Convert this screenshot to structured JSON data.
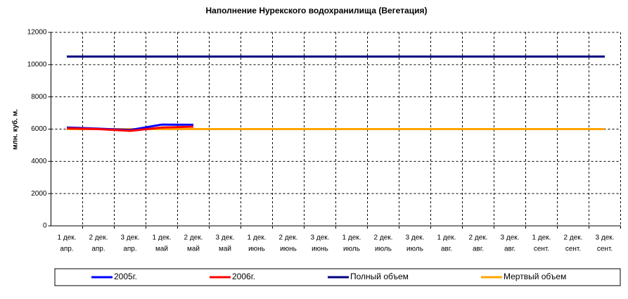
{
  "chart_data": {
    "type": "line",
    "title": "Наполнение Нурекского водохранилища (Вегетация)",
    "y_label": "млн. куб. м.",
    "categories": [
      [
        "1 дек.",
        "апр."
      ],
      [
        "2 дек.",
        "апр."
      ],
      [
        "3 дек.",
        "апр."
      ],
      [
        "1 дек.",
        "май"
      ],
      [
        "2 дек.",
        "май"
      ],
      [
        "3 дек.",
        "май"
      ],
      [
        "1 дек.",
        "июнь"
      ],
      [
        "2 дек.",
        "июнь"
      ],
      [
        "3 дек.",
        "июнь"
      ],
      [
        "1 дек.",
        "июль"
      ],
      [
        "2 дек.",
        "июль"
      ],
      [
        "3 дек.",
        "июль"
      ],
      [
        "1 дек.",
        "авг."
      ],
      [
        "2 дек.",
        "авг."
      ],
      [
        "3 дек.",
        "авг."
      ],
      [
        "1 дек.",
        "сент."
      ],
      [
        "2 дек.",
        "сент."
      ],
      [
        "3 дек.",
        "сент."
      ]
    ],
    "series": [
      {
        "name": "2005г.",
        "color": "#0000ff",
        "values": [
          6100,
          6030,
          5940,
          6280,
          6270,
          null,
          null,
          null,
          null,
          null,
          null,
          null,
          null,
          null,
          null,
          null,
          null,
          null
        ]
      },
      {
        "name": "2006г.",
        "color": "#ff0000",
        "values": [
          6050,
          6000,
          5890,
          6100,
          6150,
          null,
          null,
          null,
          null,
          null,
          null,
          null,
          null,
          null,
          null,
          null,
          null,
          null
        ]
      },
      {
        "name": "Полный объем",
        "color": "#000080",
        "values": [
          10500,
          10500,
          10500,
          10500,
          10500,
          10500,
          10500,
          10500,
          10500,
          10500,
          10500,
          10500,
          10500,
          10500,
          10500,
          10500,
          10500,
          10500
        ]
      },
      {
        "name": "Мертвый объем",
        "color": "#ffa500",
        "values": [
          6000,
          6000,
          6000,
          6000,
          6000,
          6000,
          6000,
          6000,
          6000,
          6000,
          6000,
          6000,
          6000,
          6000,
          6000,
          6000,
          6000,
          6000
        ]
      }
    ],
    "ylim": [
      0,
      12000
    ],
    "yticks": [
      0,
      2000,
      4000,
      6000,
      8000,
      10000,
      12000
    ],
    "grid": true
  }
}
